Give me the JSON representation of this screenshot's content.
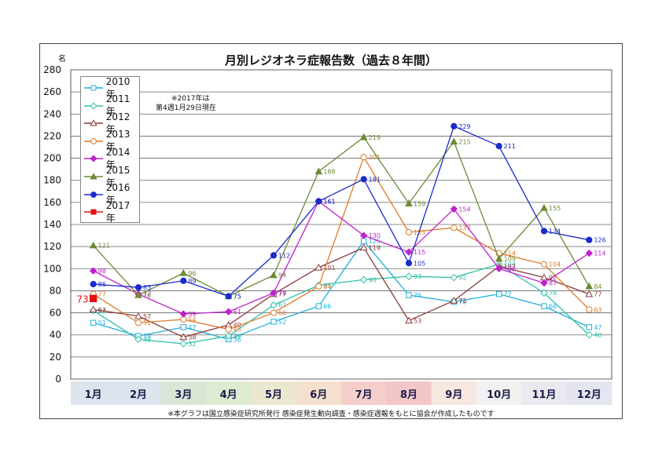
{
  "chart_data": {
    "type": "line",
    "title": "月別レジオネラ症報告数（過去８年間）",
    "ylabel": "名",
    "ylim": [
      0,
      280
    ],
    "yticks": [
      0,
      20,
      40,
      60,
      80,
      100,
      120,
      140,
      160,
      180,
      200,
      220,
      240,
      260,
      280
    ],
    "categories": [
      "1月",
      "2月",
      "3月",
      "4月",
      "5月",
      "6月",
      "7月",
      "8月",
      "9月",
      "10月",
      "11月",
      "12月"
    ],
    "grid": true,
    "legend": "top-left",
    "category_band_colors": [
      "#dde4ee",
      "#dde4ee",
      "#d9e6d6",
      "#dcebd2",
      "#ece7cf",
      "#f4e0cc",
      "#f6cfcd",
      "#f3c7c7",
      "#f6e8de",
      "#f1f1f1",
      "#e9e9ef",
      "#e4e6ef"
    ],
    "series": [
      {
        "name": "2010年",
        "color": "#1fb0d8",
        "marker": "square-open",
        "values": [
          51,
          39,
          47,
          36,
          52,
          66,
          125,
          76,
          70,
          77,
          66,
          47
        ]
      },
      {
        "name": "2011年",
        "color": "#2ec0a8",
        "marker": "diamond-open",
        "values": [
          62,
          36,
          32,
          39,
          67,
          85,
          90,
          93,
          92,
          104,
          78,
          40
        ]
      },
      {
        "name": "2012年",
        "color": "#8b3a3a",
        "marker": "triangle-open",
        "values": [
          63,
          57,
          38,
          49,
          77,
          101,
          119,
          53,
          71,
          102,
          92,
          77
        ]
      },
      {
        "name": "2013年",
        "color": "#e07a2a",
        "marker": "circle-open",
        "values": [
          77,
          51,
          54,
          45,
          60,
          84,
          201,
          133,
          137,
          114,
          104,
          63
        ]
      },
      {
        "name": "2014年",
        "color": "#c21fd0",
        "marker": "diamond",
        "values": [
          98,
          77,
          59,
          61,
          78,
          161,
          130,
          115,
          154,
          100,
          87,
          114
        ]
      },
      {
        "name": "2015年",
        "color": "#6e8a36",
        "marker": "triangle",
        "values": [
          121,
          76,
          96,
          75,
          94,
          188,
          219,
          159,
          215,
          109,
          155,
          84
        ]
      },
      {
        "name": "2016年",
        "color": "#1a2bcc",
        "marker": "circle",
        "values": [
          86,
          83,
          89,
          75,
          112,
          161,
          181,
          105,
          229,
          211,
          134,
          126
        ]
      },
      {
        "name": "2017年",
        "color": "#e61010",
        "marker": "square",
        "values": [
          73,
          null,
          null,
          null,
          null,
          null,
          null,
          null,
          null,
          null,
          null,
          null
        ]
      }
    ]
  },
  "note": [
    "※2017年は",
    "第4週1月29日現在"
  ],
  "footnote": "※本グラフは国立感染症研究所発行 感染症発生動向調査・感染症週報をもとに協会が作成したものです"
}
